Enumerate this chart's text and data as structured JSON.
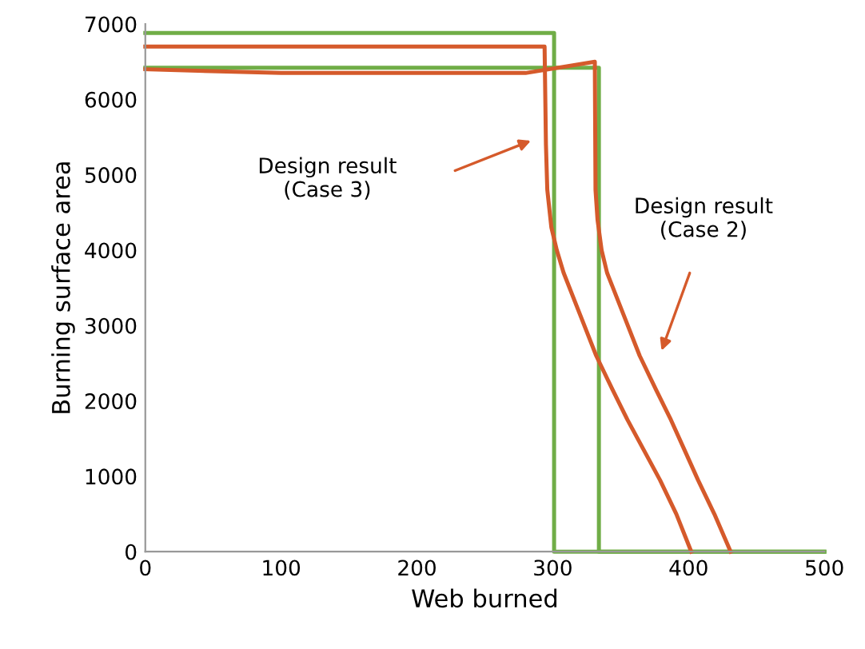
{
  "chart_data": {
    "type": "line",
    "xlabel": "Web burned",
    "ylabel": "Burning surface area",
    "xlim": [
      0,
      500
    ],
    "xticks": [
      0,
      100,
      200,
      300,
      400,
      500
    ],
    "ylim": [
      0,
      7000
    ],
    "yticks": [
      0,
      1000,
      2000,
      3000,
      4000,
      5000,
      6000,
      7000
    ],
    "grid": false,
    "legend": false,
    "marker": "none",
    "line_style": "solid",
    "series": [
      {
        "color": "#70ad47",
        "x": [
          0,
          301,
          301,
          500
        ],
        "values": [
          6880,
          6880,
          0,
          0
        ]
      },
      {
        "color": "#70ad47",
        "x": [
          0,
          334,
          334,
          500
        ],
        "values": [
          6420,
          6420,
          0,
          0
        ]
      },
      {
        "color": "#d55a2b",
        "x": [
          0,
          294,
          295,
          296,
          299,
          303,
          308,
          320,
          332,
          344,
          355,
          367,
          379,
          391,
          402
        ],
        "values": [
          6700,
          6700,
          5400,
          4800,
          4300,
          4000,
          3700,
          3150,
          2600,
          2150,
          1750,
          1350,
          950,
          500,
          0
        ]
      },
      {
        "color": "#d55a2b",
        "x": [
          0,
          100,
          200,
          280,
          331,
          331.5,
          333,
          336,
          340,
          352,
          364,
          376,
          387,
          397,
          407,
          419,
          431
        ],
        "values": [
          6400,
          6350,
          6350,
          6350,
          6500,
          4800,
          4400,
          4000,
          3700,
          3150,
          2600,
          2150,
          1750,
          1350,
          950,
          500,
          0
        ]
      }
    ],
    "annotations": [
      "Design result\n(Case 3)",
      "Design result\n(Case 2)"
    ]
  }
}
